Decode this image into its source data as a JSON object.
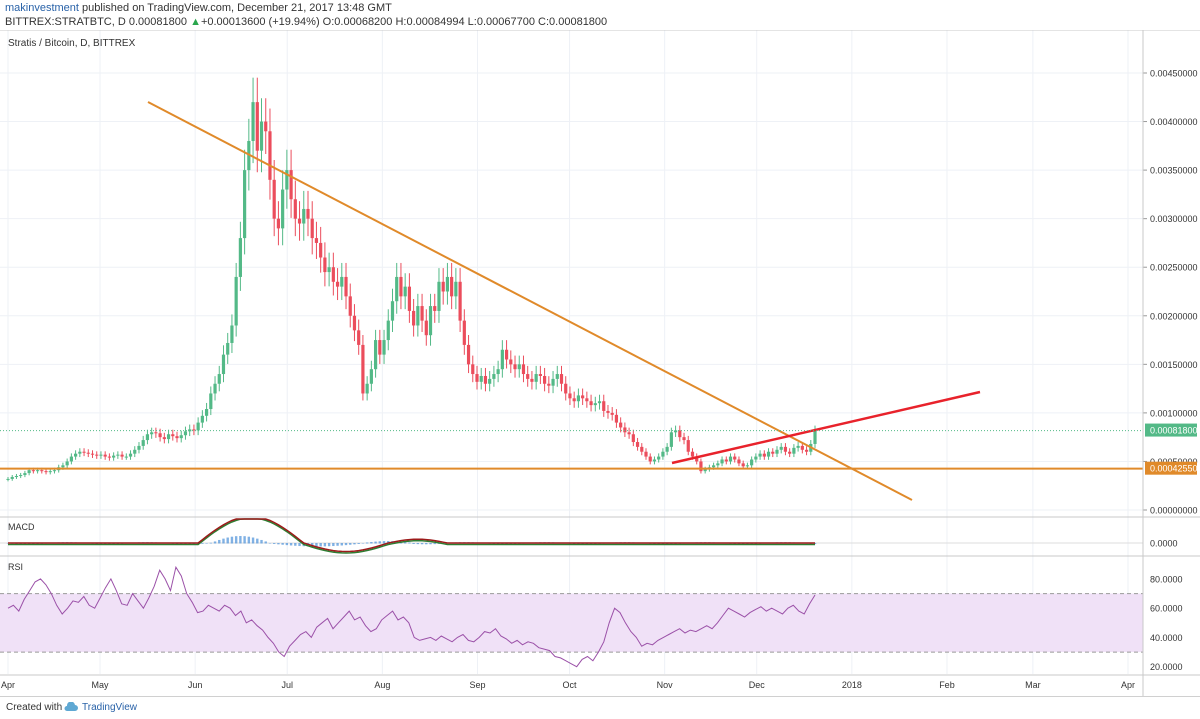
{
  "header": {
    "user": "makinvestment",
    "published": "published on TradingView.com, December 21, 2017 13:48 GMT",
    "symbol": "BITTREX:STRATBTC, D",
    "last": "0.00081800",
    "change": "+0.00013600 (+19.94%)",
    "o_label": "O:",
    "o_value": "0.00068200",
    "h_label": "H:",
    "h_value": "0.00084994",
    "l_label": "L:",
    "l_value": "0.00067700",
    "c_label": "C:",
    "c_value": "0.00081800"
  },
  "legend": "Stratis / Bitcoin, D, BITTREX",
  "panes": {
    "macd_label": "MACD",
    "rsi_label": "RSI"
  },
  "footer": {
    "created": "Created with",
    "brand": "TradingView"
  },
  "chart_data": {
    "type": "candlestick",
    "price_axis": {
      "range": [
        0,
        0.0049
      ],
      "ticks": [
        "0.00450000",
        "0.00400000",
        "0.00350000",
        "0.00300000",
        "0.00250000",
        "0.00200000",
        "0.00150000",
        "0.00100000",
        "0.00050000",
        "0.00000000"
      ],
      "tick_values": [
        0.0045,
        0.004,
        0.0035,
        0.003,
        0.0025,
        0.002,
        0.0015,
        0.001,
        0.0005,
        0
      ],
      "last_label": "0.00081800",
      "last_value": 0.000818,
      "support_label": "0.00042550",
      "support_value": 0.0004255
    },
    "macd_axis": {
      "ticks": [
        "0.0000"
      ]
    },
    "rsi_axis": {
      "range": [
        15,
        95
      ],
      "ticks": [
        "80.0000",
        "60.0000",
        "40.0000",
        "20.0000"
      ],
      "tick_values": [
        80,
        60,
        40,
        20
      ],
      "band": [
        30,
        70
      ]
    },
    "time_axis": {
      "labels": [
        "Apr",
        "May",
        "Jun",
        "Jul",
        "Aug",
        "Sep",
        "Oct",
        "Nov",
        "Dec",
        "2018",
        "Feb",
        "Mar",
        "Apr"
      ],
      "day_offsets": [
        0,
        30,
        61,
        91,
        122,
        153,
        183,
        214,
        244,
        275,
        306,
        334,
        365
      ]
    },
    "close": [
      0.00032,
      0.00034,
      0.00035,
      0.00036,
      0.00038,
      0.00041,
      0.0004,
      0.00041,
      0.0004,
      0.00039,
      0.0004,
      0.00041,
      0.00044,
      0.00046,
      0.0005,
      0.00055,
      0.00058,
      0.0006,
      0.00059,
      0.00058,
      0.00057,
      0.00056,
      0.00057,
      0.00055,
      0.00054,
      0.00056,
      0.00057,
      0.00055,
      0.00055,
      0.00058,
      0.00062,
      0.00066,
      0.00072,
      0.00078,
      0.0008,
      0.00079,
      0.00075,
      0.00073,
      0.00078,
      0.00076,
      0.00074,
      0.00077,
      0.00081,
      0.00083,
      0.00082,
      0.0009,
      0.00097,
      0.00104,
      0.0012,
      0.0013,
      0.0014,
      0.0016,
      0.00172,
      0.0019,
      0.0024,
      0.0028,
      0.0035,
      0.0038,
      0.0042,
      0.0037,
      0.004,
      0.0039,
      0.0034,
      0.003,
      0.0029,
      0.0033,
      0.0035,
      0.0032,
      0.003,
      0.00295,
      0.0031,
      0.003,
      0.0028,
      0.00275,
      0.0026,
      0.00245,
      0.0025,
      0.00235,
      0.0023,
      0.0024,
      0.0022,
      0.002,
      0.00185,
      0.0017,
      0.0012,
      0.0013,
      0.00145,
      0.00175,
      0.0016,
      0.00175,
      0.00195,
      0.00215,
      0.0024,
      0.0022,
      0.0023,
      0.00205,
      0.0019,
      0.0021,
      0.00195,
      0.0018,
      0.0021,
      0.00205,
      0.00235,
      0.00225,
      0.0024,
      0.0022,
      0.00235,
      0.00195,
      0.0017,
      0.0015,
      0.0014,
      0.00132,
      0.00138,
      0.0013,
      0.00135,
      0.0014,
      0.00145,
      0.00165,
      0.00155,
      0.0015,
      0.00145,
      0.0015,
      0.0014,
      0.00135,
      0.00132,
      0.0014,
      0.00138,
      0.0013,
      0.00128,
      0.00135,
      0.0014,
      0.0013,
      0.0012,
      0.00115,
      0.00112,
      0.00118,
      0.00115,
      0.00112,
      0.00108,
      0.0011,
      0.00112,
      0.00102,
      0.001,
      0.00098,
      0.0009,
      0.00085,
      0.0008,
      0.00078,
      0.0007,
      0.00065,
      0.0006,
      0.00055,
      0.0005,
      0.00052,
      0.00055,
      0.0006,
      0.00065,
      0.0008,
      0.00082,
      0.00075,
      0.00072,
      0.0006,
      0.00055,
      0.0005,
      0.0004,
      0.00042,
      0.00044,
      0.00046,
      0.00048,
      0.00052,
      0.0005,
      0.00055,
      0.00052,
      0.00048,
      0.00045,
      0.00046,
      0.00052,
      0.00055,
      0.00058,
      0.00055,
      0.0006,
      0.00058,
      0.00062,
      0.00065,
      0.0006,
      0.00058,
      0.00064,
      0.00066,
      0.00062,
      0.0006,
      0.00068,
      0.00082
    ],
    "rsi": [
      60,
      62,
      58,
      66,
      72,
      78,
      80,
      76,
      70,
      62,
      56,
      60,
      65,
      64,
      68,
      62,
      60,
      67,
      74,
      80,
      72,
      63,
      62,
      70,
      65,
      60,
      67,
      75,
      86,
      80,
      72,
      88,
      82,
      70,
      64,
      57,
      58,
      62,
      60,
      58,
      62,
      60,
      55,
      58,
      50,
      52,
      48,
      45,
      40,
      36,
      30,
      27,
      34,
      38,
      42,
      44,
      40,
      47,
      50,
      53,
      46,
      50,
      54,
      58,
      52,
      54,
      48,
      44,
      46,
      52,
      55,
      58,
      52,
      54,
      50,
      40,
      38,
      39,
      40,
      38,
      41,
      39,
      37,
      40,
      42,
      38,
      37,
      40,
      44,
      43,
      46,
      41,
      39,
      36,
      38,
      35,
      37,
      36,
      33,
      32,
      31,
      27,
      26,
      24,
      22,
      20,
      25,
      27,
      24,
      30,
      37,
      50,
      60,
      57,
      50,
      44,
      40,
      34,
      36,
      35,
      38,
      40,
      42,
      44,
      46,
      43,
      45,
      44,
      46,
      48,
      46,
      50,
      55,
      60,
      58,
      56,
      54,
      57,
      59,
      61,
      58,
      60,
      58,
      56,
      60,
      62,
      58,
      56,
      63,
      69
    ]
  }
}
